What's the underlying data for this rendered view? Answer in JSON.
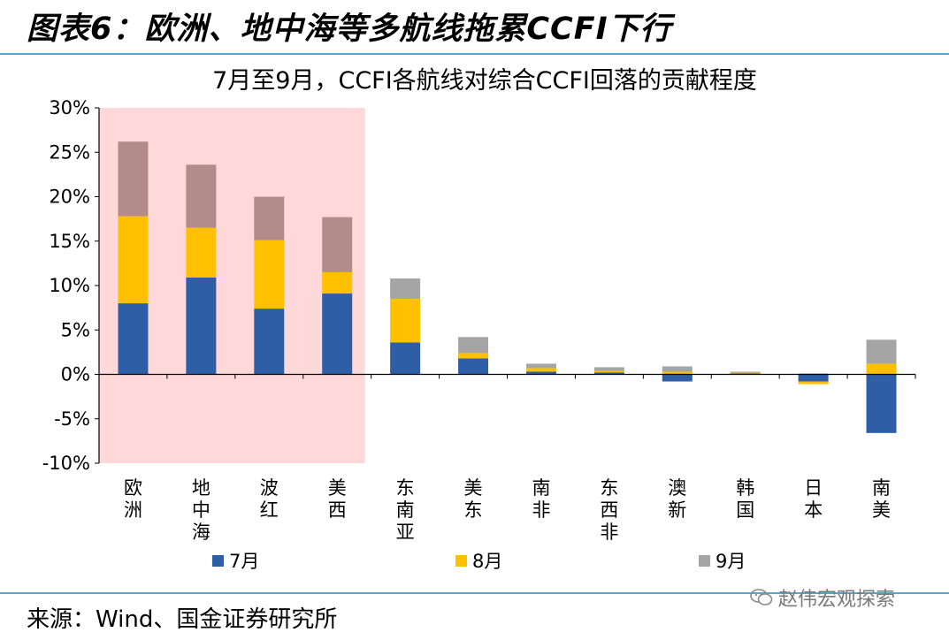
{
  "figure_title": "图表6：欧洲、地中海等多航线拖累CCFI下行",
  "source": "来源：Wind、国金证券研究所",
  "watermark": "赵伟宏观探索",
  "chart_data": {
    "type": "bar",
    "stacked": true,
    "title": "7月至9月，CCFI各航线对综合CCFI回落的贡献程度",
    "categories": [
      "欧洲",
      "地中海",
      "波红",
      "美西",
      "东南亚",
      "美东",
      "南非",
      "东西非",
      "澳新",
      "韩国",
      "日本",
      "南美"
    ],
    "series": [
      {
        "name": "7月",
        "color": "#2e5fa6",
        "values": [
          8.0,
          10.9,
          7.4,
          9.1,
          3.6,
          1.8,
          0.3,
          0.2,
          -0.8,
          0.1,
          -0.8,
          -6.6
        ]
      },
      {
        "name": "8月",
        "color": "#ffc000",
        "values": [
          9.8,
          5.6,
          7.7,
          2.4,
          4.9,
          0.6,
          0.4,
          0.2,
          0.3,
          0.1,
          -0.3,
          1.2
        ]
      },
      {
        "name": "9月",
        "color": "#a5a5a5",
        "values": [
          8.4,
          7.1,
          4.9,
          6.2,
          2.3,
          1.8,
          0.5,
          0.4,
          0.6,
          0.1,
          0.1,
          2.7
        ]
      }
    ],
    "y_ticks": [
      "30%",
      "25%",
      "20%",
      "15%",
      "10%",
      "5%",
      "0%",
      "-5%",
      "-10%"
    ],
    "ylim": [
      -10,
      30
    ],
    "highlight_categories": [
      "欧洲",
      "地中海",
      "波红",
      "美西"
    ],
    "highlight_color": "#ffd9da",
    "highlight_series_color_9": "#b38b8b",
    "legend_position": "bottom"
  }
}
